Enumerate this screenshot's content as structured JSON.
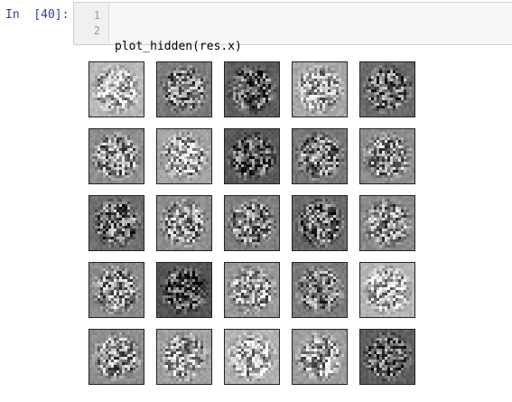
{
  "cell": {
    "prompt": "In  [40]:",
    "line_numbers": [
      "1",
      "2"
    ],
    "code_lines": [
      "plot_hidden(res.x)",
      ""
    ]
  },
  "output": {
    "rows": 5,
    "cols": 5,
    "tile_background": [
      "#b7b7b7",
      "#7c7c7c",
      "#5e5e5e",
      "#a9a9a9",
      "#6b6b6b",
      "#8f8f8f",
      "#a3a3a3",
      "#5a5a5a",
      "#777777",
      "#8c8c8c",
      "#6f6f6f",
      "#8e8e8e",
      "#7f7f7f",
      "#6a6a6a",
      "#8a8a8a",
      "#8b8b8b",
      "#555555",
      "#9a9a9a",
      "#7b7b7b",
      "#b5b5b5",
      "#8e8e8e",
      "#a0a0a0",
      "#b3b3b3",
      "#9d9d9d",
      "#5f5f5f"
    ]
  }
}
